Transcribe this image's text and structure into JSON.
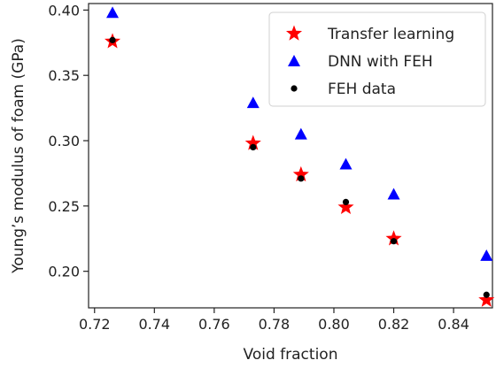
{
  "chart_data": {
    "type": "scatter",
    "xlabel": "Void fraction",
    "ylabel": "Young’s modulus of foam (GPa)",
    "xlim": [
      0.718,
      0.853
    ],
    "ylim": [
      0.172,
      0.405
    ],
    "xticks": [
      0.72,
      0.74,
      0.76,
      0.78,
      0.8,
      0.82,
      0.84
    ],
    "xtick_labels": [
      "0.72",
      "0.74",
      "0.76",
      "0.78",
      "0.80",
      "0.82",
      "0.84"
    ],
    "yticks": [
      0.2,
      0.25,
      0.3,
      0.35,
      0.4
    ],
    "ytick_labels": [
      "0.20",
      "0.25",
      "0.30",
      "0.35",
      "0.40"
    ],
    "grid": false,
    "legend_position": "top-right",
    "series": [
      {
        "name": "Transfer learning",
        "marker": "star",
        "color": "#ff0000",
        "x": [
          0.726,
          0.773,
          0.789,
          0.804,
          0.82,
          0.851
        ],
        "y": [
          0.376,
          0.298,
          0.274,
          0.249,
          0.225,
          0.178
        ]
      },
      {
        "name": "DNN with FEH",
        "marker": "triangle",
        "color": "#0000ff",
        "x": [
          0.726,
          0.773,
          0.789,
          0.804,
          0.82,
          0.851
        ],
        "y": [
          0.398,
          0.329,
          0.305,
          0.282,
          0.259,
          0.212
        ]
      },
      {
        "name": "FEH data",
        "marker": "circle",
        "color": "#000000",
        "x": [
          0.726,
          0.773,
          0.789,
          0.804,
          0.82,
          0.851
        ],
        "y": [
          0.377,
          0.295,
          0.271,
          0.253,
          0.223,
          0.182
        ]
      }
    ]
  }
}
